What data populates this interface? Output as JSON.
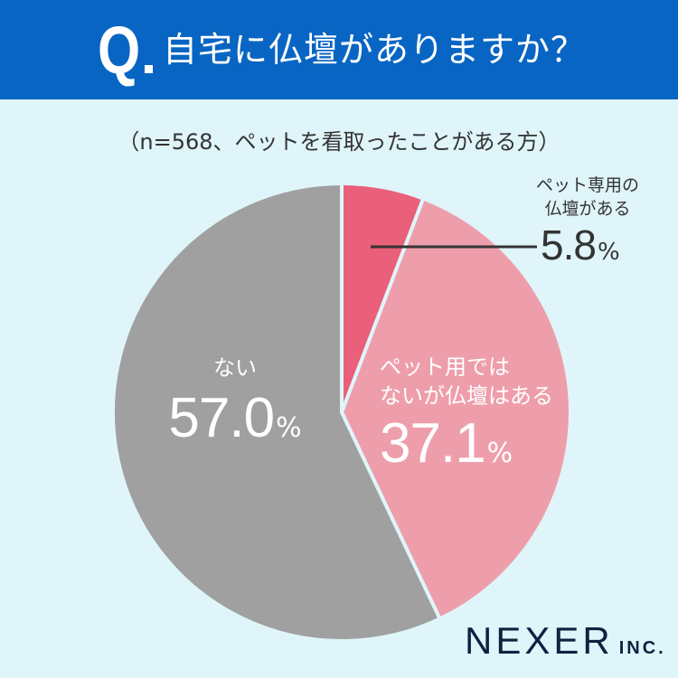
{
  "header": {
    "q_mark": "Q",
    "question": "自宅に仏壇がありますか？",
    "bg_color": "#0865c3"
  },
  "subtitle": "（n=568、ペットを看取ったことがある方）",
  "labels": {
    "pet_only": {
      "line1": "ペット専用の",
      "line2": "仏壇がある",
      "value": "5.8",
      "unit": "%"
    },
    "not_pet": {
      "line1": "ペット用では",
      "line2": "ないが仏壇はある",
      "value": "37.1",
      "unit": "%"
    },
    "none": {
      "line1": "ない",
      "value": "57.0",
      "unit": "%"
    }
  },
  "logo": {
    "name": "NEXER",
    "suffix": "INC."
  },
  "chart_data": {
    "type": "pie",
    "title": "自宅に仏壇がありますか？",
    "subtitle": "（n=568、ペットを看取ったことがある方）",
    "categories": [
      "ペット専用の仏壇がある",
      "ペット用ではないが仏壇はある",
      "ない"
    ],
    "values": [
      5.8,
      37.1,
      57.0
    ],
    "unit": "%",
    "colors": [
      "#ea5f79",
      "#ee9eab",
      "#a0a0a0"
    ],
    "start_angle": "12 o'clock, clockwise",
    "legend": "none (direct labels)"
  }
}
